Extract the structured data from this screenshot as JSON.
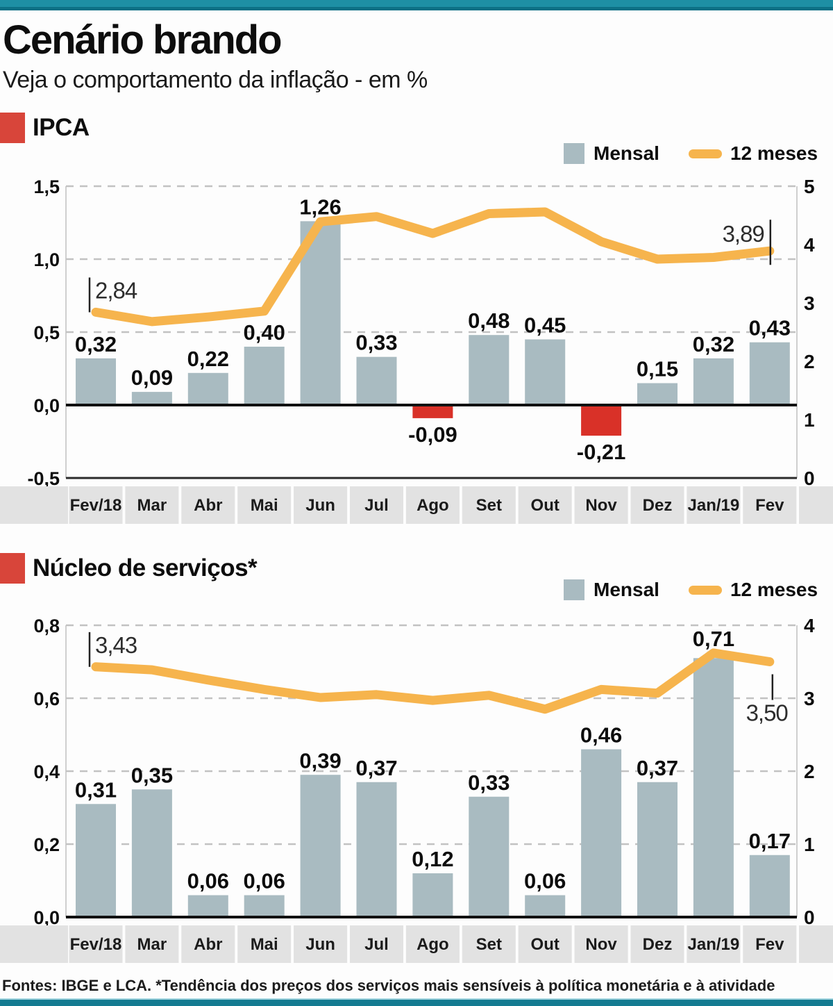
{
  "page": {
    "title": "Cenário brando",
    "subtitle": "Veja o comportamento da inflação - em %",
    "footer": "Fontes: IBGE e LCA. *Tendência dos preços dos serviços mais sensíveis à política monetária e à atividade"
  },
  "colors": {
    "teal": "#1e8fa4",
    "teal_dark": "#0c7085",
    "teal_bottom": "#147b91",
    "teal_light": "#9fd3de",
    "red": "#d8453a",
    "bar_red": "#d93128",
    "bar_gray": "#a9bbc1",
    "line_orange": "#f6b44d",
    "band": "#e2e2e2",
    "ink": "#0d0d0d"
  },
  "chart_data": [
    {
      "type": "bar+line",
      "title": "IPCA",
      "categories": [
        "Fev/18",
        "Mar",
        "Abr",
        "Mai",
        "Jun",
        "Jul",
        "Ago",
        "Set",
        "Out",
        "Nov",
        "Dez",
        "Jan/19",
        "Fev"
      ],
      "series": [
        {
          "name": "Mensal",
          "type": "bar",
          "values": [
            0.32,
            0.09,
            0.22,
            0.4,
            1.26,
            0.33,
            -0.09,
            0.48,
            0.45,
            -0.21,
            0.15,
            0.32,
            0.43
          ],
          "labels": [
            "0,32",
            "0,09",
            "0,22",
            "0,40",
            "1,26",
            "0,33",
            "-0,09",
            "0,48",
            "0,45",
            "-0,21",
            "0,15",
            "0,32",
            "0,43"
          ]
        },
        {
          "name": "12 meses",
          "type": "line",
          "values": [
            2.84,
            2.68,
            2.76,
            2.86,
            4.39,
            4.48,
            4.19,
            4.53,
            4.56,
            4.05,
            3.75,
            3.78,
            3.89
          ]
        }
      ],
      "left_axis": {
        "tick_labels": [
          "1,5",
          "1,0",
          "0,5",
          "0,0",
          "-0,5"
        ],
        "tick_values": [
          1.5,
          1.0,
          0.5,
          0,
          -0.5
        ],
        "range": [
          -0.5,
          1.5
        ]
      },
      "right_axis": {
        "tick_labels": [
          "5",
          "4",
          "3",
          "2",
          "1",
          "0"
        ],
        "tick_values": [
          5,
          4,
          3,
          2,
          1,
          0
        ],
        "range": [
          0,
          5
        ]
      },
      "annotations": [
        {
          "month_index": 0,
          "text": "2,84",
          "placement": "start"
        },
        {
          "month_index": 12,
          "text": "3,89",
          "placement": "end-above"
        }
      ]
    },
    {
      "type": "bar+line",
      "title": "Núcleo de serviços*",
      "categories": [
        "Fev/18",
        "Mar",
        "Abr",
        "Mai",
        "Jun",
        "Jul",
        "Ago",
        "Set",
        "Out",
        "Nov",
        "Dez",
        "Jan/19",
        "Fev"
      ],
      "series": [
        {
          "name": "Mensal",
          "type": "bar",
          "values": [
            0.31,
            0.35,
            0.06,
            0.06,
            0.39,
            0.37,
            0.12,
            0.33,
            0.06,
            0.46,
            0.37,
            0.71,
            0.17
          ],
          "labels": [
            "0,31",
            "0,35",
            "0,06",
            "0,06",
            "0,39",
            "0,37",
            "0,12",
            "0,33",
            "0,06",
            "0,46",
            "0,37",
            "0,71",
            "0,17"
          ]
        },
        {
          "name": "12 meses",
          "type": "line",
          "values": [
            3.43,
            3.39,
            3.25,
            3.12,
            3.01,
            3.05,
            2.97,
            3.04,
            2.85,
            3.12,
            3.07,
            3.62,
            3.5
          ]
        }
      ],
      "left_axis": {
        "tick_labels": [
          "0,8",
          "0,6",
          "0,4",
          "0,2",
          "0,0"
        ],
        "tick_values": [
          0.8,
          0.6,
          0.4,
          0.2,
          0
        ],
        "range": [
          0,
          0.8
        ]
      },
      "right_axis": {
        "tick_labels": [
          "4",
          "3",
          "2",
          "1",
          "0"
        ],
        "tick_values": [
          4,
          3,
          2,
          1,
          0
        ],
        "range": [
          0,
          4
        ]
      },
      "annotations": [
        {
          "month_index": 0,
          "text": "3,43",
          "placement": "start"
        },
        {
          "month_index": 12,
          "text": "3,50",
          "placement": "end-below"
        }
      ]
    }
  ]
}
